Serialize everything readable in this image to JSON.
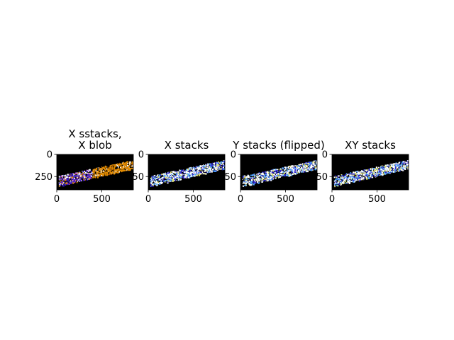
{
  "chart_data": [
    {
      "type": "heatmap",
      "title": "X sstacks,\nX blob",
      "title_lines": [
        "X sstacks,",
        "X blob"
      ],
      "xlim": [
        0,
        850
      ],
      "ylim": [
        400,
        0
      ],
      "xticks": [
        0,
        500
      ],
      "yticks": [
        0,
        250
      ],
      "grid": false,
      "description_colors": [
        "#000000",
        "#e08a00",
        "#ffffff",
        "#3a1fd0",
        "#c040c0"
      ]
    },
    {
      "type": "heatmap",
      "title": "X stacks",
      "title_lines": [
        "X stacks"
      ],
      "xlim": [
        0,
        850
      ],
      "ylim": [
        400,
        0
      ],
      "xticks": [
        0,
        500
      ],
      "yticks": [
        0,
        250
      ],
      "grid": false,
      "description_colors": [
        "#000000",
        "#ffffff",
        "#4aa3ff",
        "#2a1fcf",
        "#e0e060"
      ]
    },
    {
      "type": "heatmap",
      "title": "Y stacks (flipped)",
      "title_lines": [
        "Y stacks (flipped)"
      ],
      "xlim": [
        0,
        850
      ],
      "ylim": [
        400,
        0
      ],
      "xticks": [
        0,
        500
      ],
      "yticks": [
        0,
        250
      ],
      "grid": false,
      "description_colors": [
        "#000000",
        "#ffffff",
        "#4aa3ff",
        "#2a1fcf",
        "#e0e060"
      ]
    },
    {
      "type": "heatmap",
      "title": "XY stacks",
      "title_lines": [
        "XY stacks"
      ],
      "xlim": [
        0,
        850
      ],
      "ylim": [
        400,
        0
      ],
      "xticks": [
        0,
        500
      ],
      "yticks": [
        0,
        250
      ],
      "grid": false,
      "description_colors": [
        "#000000",
        "#ffffff",
        "#4aa3ff",
        "#2a1fcf",
        "#e0e060"
      ]
    }
  ]
}
